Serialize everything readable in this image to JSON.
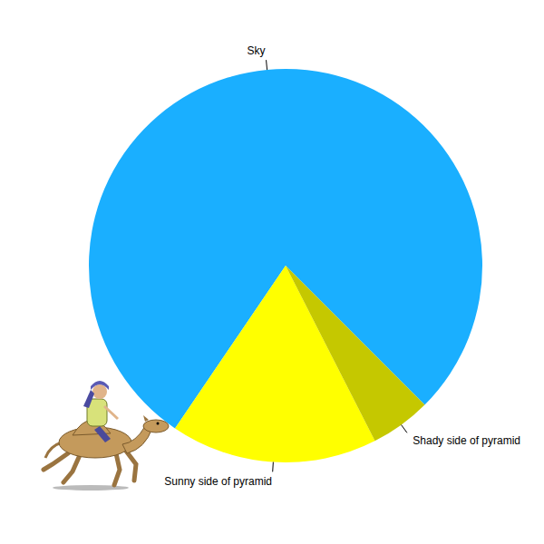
{
  "chart_data": {
    "type": "pie",
    "categories": [
      "Sky",
      "Sunny side of pyramid",
      "Shady side of pyramid"
    ],
    "values": [
      78,
      17,
      5
    ],
    "colors": [
      "#1AAFFF",
      "#FFFF00",
      "#C5C800"
    ]
  }
}
